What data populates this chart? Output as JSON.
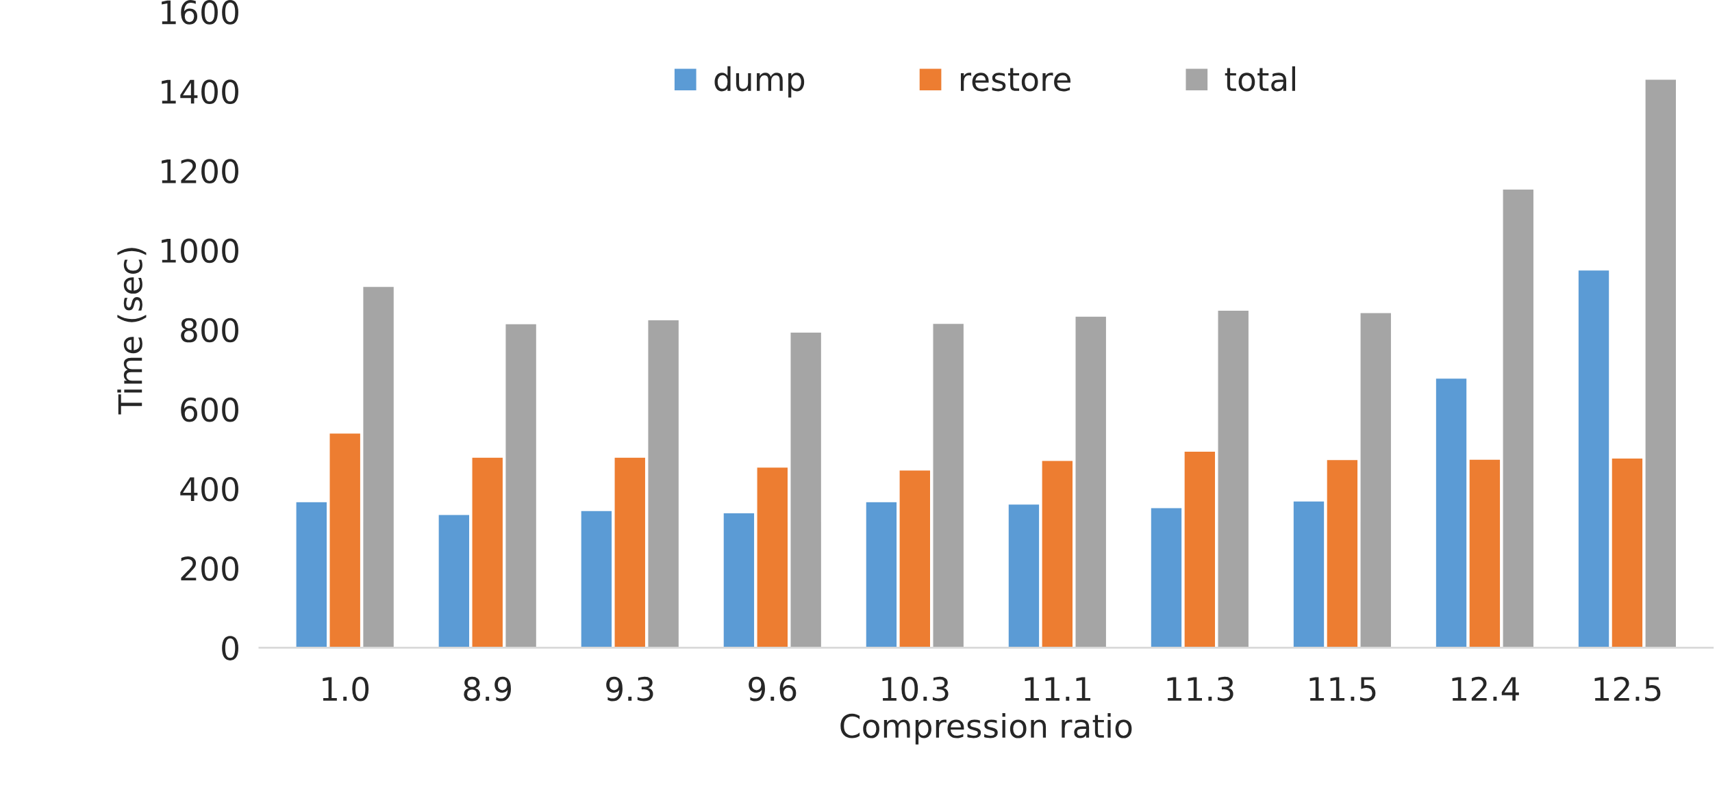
{
  "chart_data": {
    "type": "bar",
    "xlabel": "Compression ratio",
    "ylabel": "Time (sec)",
    "categories": [
      "1.0",
      "8.9",
      "9.3",
      "9.6",
      "10.3",
      "11.1",
      "11.3",
      "11.5",
      "12.4",
      "12.5"
    ],
    "series": [
      {
        "name": "dump",
        "color": "#5b9bd5",
        "values": [
          367,
          335,
          345,
          339,
          367,
          361,
          352,
          369,
          678,
          950
        ]
      },
      {
        "name": "restore",
        "color": "#ed7d31",
        "values": [
          540,
          479,
          479,
          454,
          447,
          471,
          494,
          473,
          474,
          477
        ]
      },
      {
        "name": "total",
        "color": "#a5a5a5",
        "values": [
          909,
          815,
          825,
          794,
          816,
          834,
          849,
          843,
          1154,
          1430
        ]
      }
    ],
    "ylim": [
      0,
      1600
    ],
    "yticks": [
      0,
      200,
      400,
      600,
      800,
      1000,
      1200,
      1400,
      1600
    ],
    "grid": false,
    "legend": "top"
  }
}
